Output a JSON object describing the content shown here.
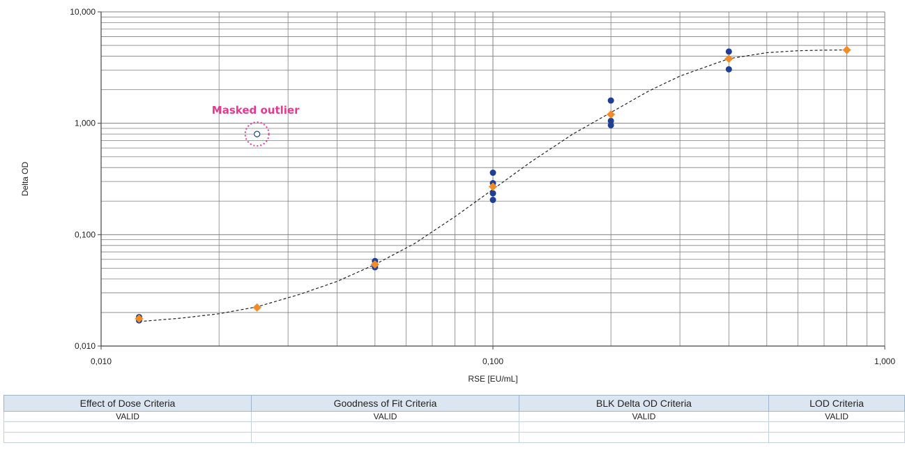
{
  "chart_data": {
    "type": "scatter",
    "title": "",
    "xlabel": "RSE [EU/mL]",
    "ylabel": "Delta OD",
    "xscale": "log",
    "yscale": "log",
    "xlim": [
      0.01,
      1.0
    ],
    "ylim": [
      0.01,
      10.0
    ],
    "grid": true,
    "legend": "none",
    "x_tick_labels": [
      "0,010",
      "0,100",
      "1,000"
    ],
    "y_tick_labels": [
      "0,010",
      "0,100",
      "1,000",
      "10,000"
    ],
    "colors": {
      "replicate": "#1f3f94",
      "mean": "#f28c28",
      "fit": "#222222",
      "annotation": "#e6398f",
      "grid": "#808080"
    },
    "series": [
      {
        "role": "replicates",
        "points": [
          {
            "x": 0.0125,
            "y": 0.0182
          },
          {
            "x": 0.0125,
            "y": 0.017
          },
          {
            "x": 0.05,
            "y": 0.058
          },
          {
            "x": 0.05,
            "y": 0.051
          },
          {
            "x": 0.1,
            "y": 0.36
          },
          {
            "x": 0.1,
            "y": 0.29
          },
          {
            "x": 0.1,
            "y": 0.235
          },
          {
            "x": 0.1,
            "y": 0.205
          },
          {
            "x": 0.2,
            "y": 1.6
          },
          {
            "x": 0.2,
            "y": 1.05
          },
          {
            "x": 0.2,
            "y": 0.96
          },
          {
            "x": 0.4,
            "y": 4.4
          },
          {
            "x": 0.4,
            "y": 3.05
          }
        ]
      },
      {
        "role": "means",
        "points": [
          {
            "x": 0.0125,
            "y": 0.0176
          },
          {
            "x": 0.025,
            "y": 0.0222
          },
          {
            "x": 0.05,
            "y": 0.054
          },
          {
            "x": 0.1,
            "y": 0.27
          },
          {
            "x": 0.2,
            "y": 1.2
          },
          {
            "x": 0.4,
            "y": 3.8
          },
          {
            "x": 0.8,
            "y": 4.55
          }
        ]
      },
      {
        "role": "masked",
        "points": [
          {
            "x": 0.025,
            "y": 0.8
          }
        ]
      }
    ],
    "fit_curve": {
      "style": "dashed",
      "x_range": [
        0.0125,
        0.8
      ],
      "points": [
        [
          0.0125,
          0.0166
        ],
        [
          0.016,
          0.0178
        ],
        [
          0.02,
          0.0195
        ],
        [
          0.025,
          0.0225
        ],
        [
          0.032,
          0.029
        ],
        [
          0.04,
          0.038
        ],
        [
          0.05,
          0.054
        ],
        [
          0.063,
          0.083
        ],
        [
          0.08,
          0.145
        ],
        [
          0.1,
          0.255
        ],
        [
          0.125,
          0.45
        ],
        [
          0.16,
          0.8
        ],
        [
          0.2,
          1.25
        ],
        [
          0.25,
          1.95
        ],
        [
          0.3,
          2.65
        ],
        [
          0.4,
          3.8
        ],
        [
          0.5,
          4.3
        ],
        [
          0.6,
          4.48
        ],
        [
          0.7,
          4.53
        ],
        [
          0.8,
          4.55
        ]
      ]
    },
    "annotations": [
      {
        "text": "Masked outlier",
        "x": 0.025,
        "y": 0.8
      }
    ]
  },
  "criteria_table": {
    "headers": [
      "Effect of Dose Criteria",
      "Goodness of Fit Criteria",
      "BLK Delta OD Criteria",
      "LOD Criteria"
    ],
    "rows": [
      [
        "VALID",
        "VALID",
        "VALID",
        "VALID"
      ],
      [
        "",
        "",
        "",
        ""
      ],
      [
        "",
        "",
        "",
        ""
      ]
    ]
  }
}
